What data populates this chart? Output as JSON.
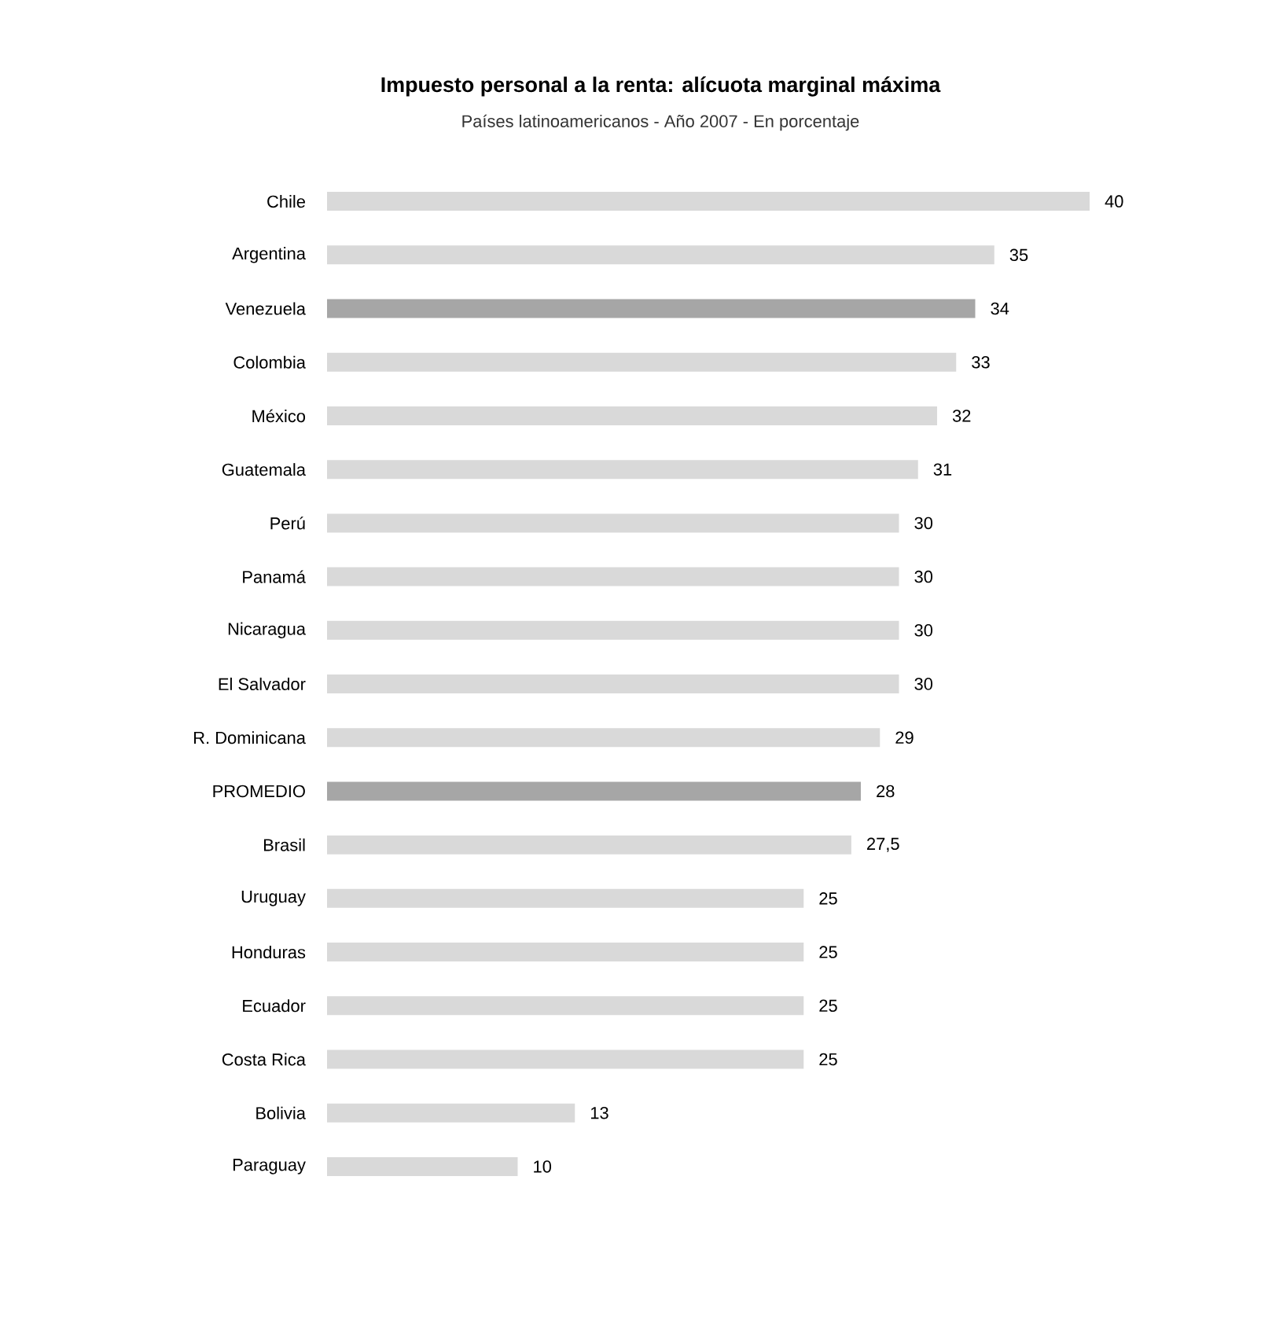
{
  "chart_data": {
    "type": "bar",
    "orientation": "horizontal",
    "title": "Impuesto personal a la renta: alícuota marginal máxima",
    "subtitle": "Países latinoamericanos - Año 2007 - En porcentaje",
    "categories": [
      "Chile",
      "Argentina",
      "Venezuela",
      "Colombia",
      "México",
      "Guatemala",
      "Perú",
      "Panamá",
      "Nicaragua",
      "El Salvador",
      "R. Dominicana",
      "PROMEDIO",
      "Brasil",
      "Uruguay",
      "Honduras",
      "Ecuador",
      "Costa Rica",
      "Bolivia",
      "Paraguay"
    ],
    "values": [
      40,
      35,
      34,
      33,
      32,
      31,
      30,
      30,
      30,
      30,
      29,
      28,
      27.5,
      25,
      25,
      25,
      25,
      13,
      10
    ],
    "value_labels": [
      "40",
      "35",
      "34",
      "33",
      "32",
      "31",
      "30",
      "30",
      "30",
      "30",
      "29",
      "28",
      "27,5",
      "25",
      "25",
      "25",
      "25",
      "13",
      "10"
    ],
    "colors": [
      "#d9d9d9",
      "#d9d9d9",
      "#a6a6a6",
      "#d9d9d9",
      "#d9d9d9",
      "#d9d9d9",
      "#d9d9d9",
      "#d9d9d9",
      "#d9d9d9",
      "#d9d9d9",
      "#d9d9d9",
      "#a6a6a6",
      "#d9d9d9",
      "#d9d9d9",
      "#d9d9d9",
      "#d9d9d9",
      "#d9d9d9",
      "#d9d9d9",
      "#d9d9d9"
    ],
    "xlim": [
      0,
      40
    ]
  }
}
